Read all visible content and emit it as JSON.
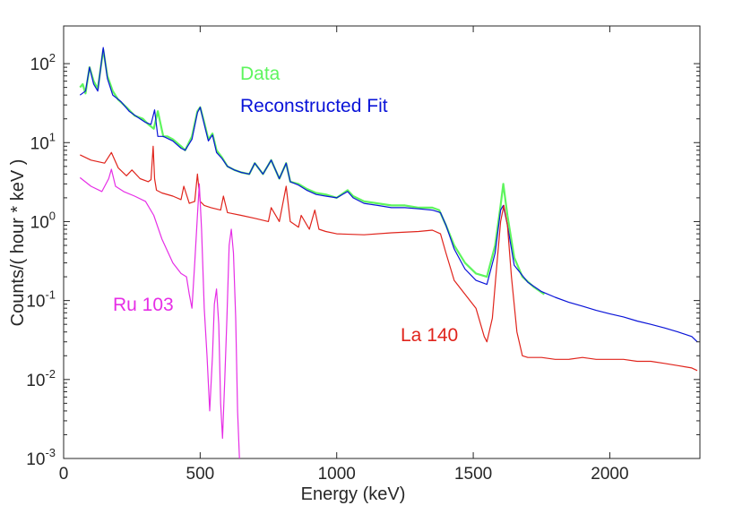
{
  "chart_data": {
    "type": "line",
    "xlabel": "Energy (keV)",
    "ylabel": "Counts/( hour * keV )",
    "xlim": [
      0,
      2330
    ],
    "ylim": [
      0.001,
      300
    ],
    "yscale": "log",
    "x_ticks": [
      0,
      500,
      1000,
      1500,
      2000
    ],
    "x_tick_labels": [
      "0",
      "500",
      "1000",
      "1500",
      "2000"
    ],
    "y_ticks": [
      0.001,
      0.01,
      0.1,
      1,
      10,
      100
    ],
    "y_tick_labels": [
      {
        "base": "10",
        "exp": "-3"
      },
      {
        "base": "10",
        "exp": "-2"
      },
      {
        "base": "10",
        "exp": "-1"
      },
      {
        "base": "10",
        "exp": "0"
      },
      {
        "base": "10",
        "exp": "1"
      },
      {
        "base": "10",
        "exp": "2"
      }
    ],
    "legend": [
      {
        "label": "Data",
        "color": "#5ef55e"
      },
      {
        "label": "Reconstructed Fit",
        "color": "#0a14d8"
      }
    ],
    "annotations": [
      {
        "text": "Ru 103",
        "color": "#e62ee6"
      },
      {
        "text": "La 140",
        "color": "#e0241c"
      }
    ],
    "series": [
      {
        "name": "Data",
        "color": "#5ef55e",
        "x": [
          60,
          70,
          80,
          95,
          110,
          125,
          145,
          160,
          180,
          200,
          230,
          260,
          290,
          310,
          330,
          345,
          365,
          380,
          400,
          430,
          445,
          470,
          490,
          500,
          515,
          530,
          545,
          560,
          580,
          600,
          625,
          650,
          680,
          700,
          730,
          760,
          790,
          815,
          830,
          860,
          890,
          925,
          960,
          1000,
          1040,
          1060,
          1100,
          1150,
          1200,
          1250,
          1300,
          1350,
          1375,
          1400,
          1430,
          1470,
          1510,
          1550,
          1580,
          1600,
          1610,
          1625,
          1650,
          1680,
          1720,
          1760
        ],
        "values": [
          50,
          55,
          42,
          90,
          60,
          48,
          150,
          70,
          45,
          35,
          28,
          22,
          20,
          17,
          15,
          25,
          12,
          12,
          11,
          9,
          8,
          12,
          25,
          28,
          18,
          11,
          13,
          8,
          6.5,
          5,
          4.5,
          4.2,
          4,
          5.5,
          4,
          6,
          3.5,
          5.5,
          3.2,
          3,
          2.6,
          2.3,
          2.2,
          2.0,
          2.5,
          2.1,
          1.8,
          1.7,
          1.6,
          1.6,
          1.5,
          1.5,
          1.4,
          0.9,
          0.5,
          0.3,
          0.22,
          0.2,
          0.5,
          1.6,
          3.0,
          1.2,
          0.35,
          0.2,
          0.15,
          0.12
        ]
      },
      {
        "name": "Reconstructed Fit",
        "color": "#0a14d8",
        "x": [
          60,
          80,
          95,
          110,
          125,
          145,
          160,
          180,
          210,
          240,
          270,
          300,
          320,
          333,
          345,
          365,
          400,
          430,
          445,
          470,
          490,
          500,
          515,
          530,
          545,
          560,
          580,
          600,
          625,
          650,
          680,
          700,
          730,
          760,
          790,
          815,
          830,
          860,
          890,
          925,
          960,
          1000,
          1040,
          1060,
          1100,
          1150,
          1200,
          1250,
          1300,
          1350,
          1380,
          1400,
          1430,
          1470,
          1510,
          1550,
          1580,
          1600,
          1610,
          1625,
          1650,
          1700,
          1750,
          1800,
          1850,
          1900,
          1950,
          2000,
          2050,
          2100,
          2150,
          2200,
          2250,
          2300,
          2320
        ],
        "values": [
          40,
          45,
          90,
          55,
          45,
          160,
          65,
          40,
          33,
          25,
          21,
          18,
          17,
          26,
          12,
          12,
          10.5,
          8.5,
          8,
          11,
          24,
          28,
          17,
          10.5,
          12.5,
          7.5,
          6.3,
          5,
          4.5,
          4.2,
          4,
          5.5,
          4,
          6,
          3.5,
          5.5,
          3.2,
          2.9,
          2.5,
          2.2,
          2.1,
          2.0,
          2.4,
          2.0,
          1.7,
          1.6,
          1.5,
          1.5,
          1.45,
          1.4,
          1.3,
          0.9,
          0.45,
          0.25,
          0.18,
          0.16,
          0.4,
          1.4,
          1.6,
          0.9,
          0.28,
          0.17,
          0.13,
          0.11,
          0.095,
          0.085,
          0.075,
          0.068,
          0.062,
          0.055,
          0.05,
          0.045,
          0.04,
          0.035,
          0.03
        ]
      },
      {
        "name": "La 140",
        "color": "#e0241c",
        "x": [
          60,
          100,
          150,
          175,
          200,
          230,
          250,
          280,
          310,
          320,
          328,
          333,
          340,
          360,
          400,
          430,
          440,
          460,
          480,
          490,
          500,
          515,
          540,
          575,
          585,
          600,
          650,
          700,
          750,
          760,
          790,
          815,
          830,
          860,
          870,
          900,
          920,
          935,
          960,
          1000,
          1100,
          1200,
          1300,
          1350,
          1380,
          1400,
          1430,
          1470,
          1510,
          1540,
          1550,
          1570,
          1585,
          1600,
          1612,
          1625,
          1640,
          1660,
          1680,
          1700,
          1750,
          1800,
          1850,
          1900,
          1950,
          2000,
          2050,
          2100,
          2150,
          2200,
          2250,
          2300,
          2320
        ],
        "values": [
          7,
          6,
          5.5,
          7.5,
          4.8,
          3.8,
          4.5,
          3.5,
          3.2,
          3.4,
          9,
          3.5,
          2.5,
          2.3,
          2.1,
          1.9,
          2.8,
          1.7,
          1.8,
          4,
          1.8,
          1.6,
          1.5,
          1.4,
          2.1,
          1.3,
          1.2,
          1.1,
          1.0,
          1.5,
          1.0,
          2.8,
          1.0,
          0.85,
          1.2,
          0.8,
          1.4,
          0.8,
          0.75,
          0.7,
          0.68,
          0.72,
          0.75,
          0.78,
          0.7,
          0.4,
          0.18,
          0.12,
          0.08,
          0.035,
          0.03,
          0.06,
          0.25,
          1.0,
          1.6,
          0.9,
          0.2,
          0.04,
          0.02,
          0.019,
          0.019,
          0.018,
          0.018,
          0.019,
          0.018,
          0.018,
          0.018,
          0.017,
          0.017,
          0.016,
          0.015,
          0.014,
          0.013
        ]
      },
      {
        "name": "Ru 103",
        "color": "#e62ee6",
        "x": [
          60,
          100,
          140,
          165,
          175,
          190,
          220,
          260,
          300,
          330,
          360,
          400,
          430,
          450,
          460,
          470,
          480,
          490,
          497,
          505,
          515,
          525,
          535,
          545,
          552,
          560,
          568,
          575,
          582,
          590,
          598,
          606,
          614,
          622,
          630,
          637,
          644
        ],
        "values": [
          3.6,
          2.8,
          2.4,
          3.5,
          4.6,
          2.8,
          2.4,
          2.1,
          1.8,
          1.2,
          0.6,
          0.3,
          0.22,
          0.2,
          0.12,
          0.08,
          0.3,
          1.2,
          3.0,
          0.8,
          0.08,
          0.02,
          0.004,
          0.02,
          0.09,
          0.14,
          0.05,
          0.005,
          0.0018,
          0.01,
          0.06,
          0.5,
          0.8,
          0.4,
          0.06,
          0.004,
          0.001
        ]
      }
    ]
  }
}
